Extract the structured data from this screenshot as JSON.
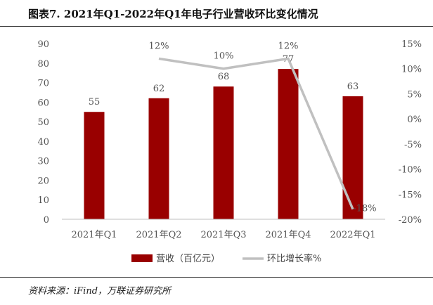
{
  "title": "图表7. 2021年Q1-2022年Q1年电子行业营收环比变化情况",
  "source": "资料来源：iFind，万联证券研究所",
  "chart_data": {
    "type": "bar",
    "categories": [
      "2021年Q1",
      "2021年Q2",
      "2021年Q3",
      "2021年Q4",
      "2022年Q1"
    ],
    "series": [
      {
        "name": "营收（百亿元）",
        "type": "bar",
        "axis": "left",
        "color": "#990000",
        "values": [
          55,
          62,
          68,
          77,
          63
        ],
        "labels": [
          "55",
          "62",
          "68",
          "77",
          "63"
        ]
      },
      {
        "name": "环比增长率%",
        "type": "line",
        "axis": "right",
        "color": "#c0c0c0",
        "values": [
          null,
          12,
          10,
          12,
          -18
        ],
        "labels": [
          "",
          "12%",
          "10%",
          "12%",
          "-18%"
        ]
      }
    ],
    "y_left": {
      "min": 0,
      "max": 90,
      "step": 10,
      "ticks": [
        "0",
        "10",
        "20",
        "30",
        "40",
        "50",
        "60",
        "70",
        "80",
        "90"
      ]
    },
    "y_right": {
      "min": -20,
      "max": 15,
      "step": 5,
      "ticks": [
        "-20%",
        "-15%",
        "-10%",
        "-5%",
        "0%",
        "5%",
        "10%",
        "15%"
      ]
    },
    "legend": "bottom",
    "grid": false
  }
}
